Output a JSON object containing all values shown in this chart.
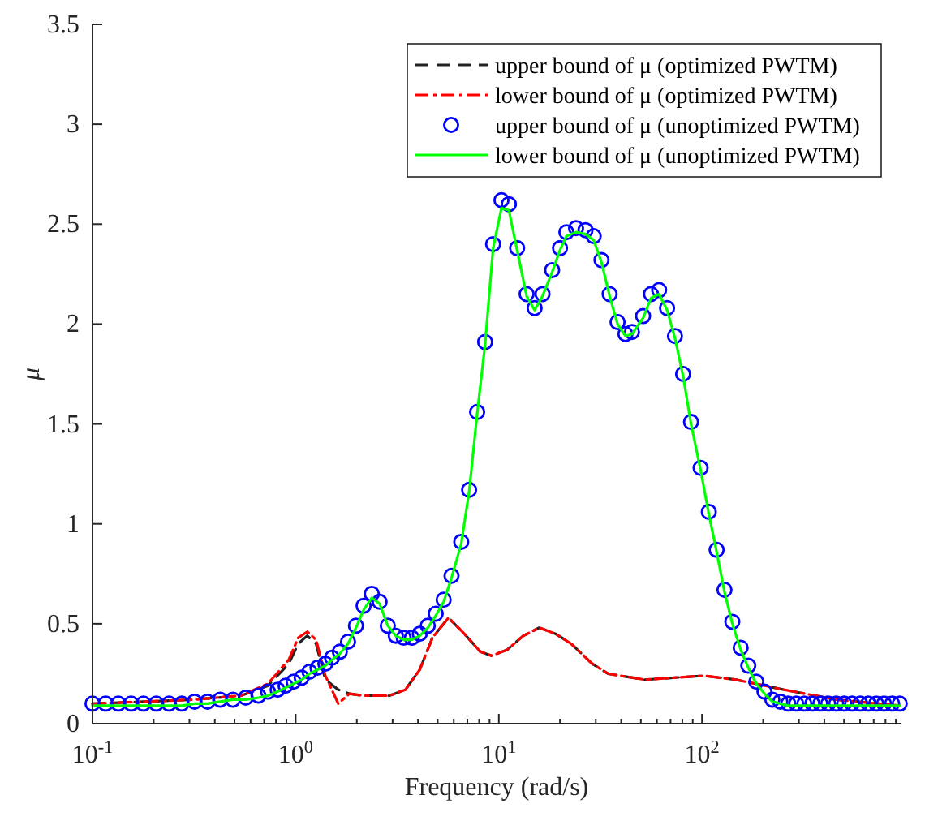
{
  "chart_data": {
    "type": "line",
    "xlabel": "Frequency (rad/s)",
    "ylabel": "μ",
    "log": "x",
    "xlim": [
      0.1,
      950
    ],
    "ylim": [
      0,
      3.5
    ],
    "xticks": [
      {
        "value": 0.1,
        "label": "10$^{-1}$"
      },
      {
        "value": 0.2,
        "label": null
      },
      {
        "value": 0.3,
        "label": null
      },
      {
        "value": 0.4,
        "label": null
      },
      {
        "value": 0.5,
        "label": null
      },
      {
        "value": 0.6,
        "label": null
      },
      {
        "value": 0.7,
        "label": null
      },
      {
        "value": 0.8,
        "label": null
      },
      {
        "value": 0.9,
        "label": null
      },
      {
        "value": 1,
        "label": "10$^{0}$"
      },
      {
        "value": 2,
        "label": null
      },
      {
        "value": 3,
        "label": null
      },
      {
        "value": 4,
        "label": null
      },
      {
        "value": 5,
        "label": null
      },
      {
        "value": 6,
        "label": null
      },
      {
        "value": 7,
        "label": null
      },
      {
        "value": 8,
        "label": null
      },
      {
        "value": 9,
        "label": null
      },
      {
        "value": 10,
        "label": "10$^{1}$"
      },
      {
        "value": 20,
        "label": null
      },
      {
        "value": 30,
        "label": null
      },
      {
        "value": 40,
        "label": null
      },
      {
        "value": 50,
        "label": null
      },
      {
        "value": 60,
        "label": null
      },
      {
        "value": 70,
        "label": null
      },
      {
        "value": 80,
        "label": null
      },
      {
        "value": 90,
        "label": null
      },
      {
        "value": 100,
        "label": "10$^{2}$"
      },
      {
        "value": 200,
        "label": null
      },
      {
        "value": 300,
        "label": null
      },
      {
        "value": 400,
        "label": null
      },
      {
        "value": 500,
        "label": null
      },
      {
        "value": 600,
        "label": null
      },
      {
        "value": 700,
        "label": null
      },
      {
        "value": 800,
        "label": null
      },
      {
        "value": 900,
        "label": null
      }
    ],
    "yticks": [
      0,
      0.5,
      1,
      1.5,
      2,
      2.5,
      3,
      3.5
    ],
    "grid": false,
    "legend": "top right",
    "series": [
      {
        "name": "upper bound of μ (optimized PWTM)",
        "color": "#222222",
        "line_style": "dashed",
        "marker": "none",
        "x": [
          0.1,
          0.313,
          0.538,
          0.731,
          0.925,
          1.03,
          1.14,
          1.26,
          1.4,
          1.62,
          1.84,
          2.16,
          2.89,
          3.47,
          4.08,
          4.71,
          5.65,
          6.76,
          8.11,
          9.21,
          11,
          13.2,
          15.8,
          19,
          22.7,
          28.8,
          34.5,
          52.3,
          102,
          147,
          253,
          458,
          940
        ],
        "values": [
          0.1,
          0.12,
          0.14,
          0.19,
          0.3,
          0.4,
          0.44,
          0.4,
          0.22,
          0.17,
          0.15,
          0.14,
          0.14,
          0.17,
          0.27,
          0.43,
          0.53,
          0.45,
          0.36,
          0.34,
          0.37,
          0.44,
          0.48,
          0.45,
          0.4,
          0.3,
          0.25,
          0.22,
          0.24,
          0.22,
          0.17,
          0.12,
          0.09
        ]
      },
      {
        "name": "lower bound of μ (optimized PWTM)",
        "color": "#ff0000",
        "line_style": "dashdot",
        "marker": "none",
        "x": [
          0.1,
          0.313,
          0.538,
          0.731,
          0.925,
          1.03,
          1.14,
          1.26,
          1.4,
          1.62,
          1.84,
          2.16,
          2.89,
          3.47,
          4.08,
          4.71,
          5.65,
          6.76,
          8.11,
          9.21,
          11,
          13.2,
          15.8,
          19,
          22.7,
          28.8,
          34.5,
          52.3,
          102,
          147,
          253,
          458,
          940
        ],
        "values": [
          0.1,
          0.12,
          0.14,
          0.2,
          0.32,
          0.43,
          0.46,
          0.42,
          0.24,
          0.1,
          0.15,
          0.14,
          0.14,
          0.17,
          0.27,
          0.43,
          0.53,
          0.45,
          0.36,
          0.34,
          0.37,
          0.44,
          0.48,
          0.45,
          0.4,
          0.3,
          0.25,
          0.22,
          0.24,
          0.22,
          0.17,
          0.12,
          0.09
        ]
      },
      {
        "name": "upper bound of μ (unoptimized PWTM)",
        "type": "scatter",
        "color": "#0000ff",
        "marker": "circle",
        "x": [
          0.1,
          0.116,
          0.134,
          0.155,
          0.178,
          0.206,
          0.238,
          0.275,
          0.318,
          0.368,
          0.425,
          0.491,
          0.568,
          0.656,
          0.731,
          0.815,
          0.892,
          0.977,
          1.07,
          1.17,
          1.28,
          1.4,
          1.51,
          1.65,
          1.81,
          1.98,
          2.16,
          2.37,
          2.59,
          2.84,
          3.11,
          3.4,
          3.73,
          4.08,
          4.47,
          4.89,
          5.35,
          5.85,
          6.53,
          7.14,
          7.82,
          8.56,
          9.37,
          10.3,
          11.2,
          12.3,
          13.7,
          15,
          16.4,
          18.3,
          20,
          21.5,
          24,
          26.7,
          29.3,
          32,
          35.1,
          38.4,
          42,
          45.2,
          51.3,
          56.1,
          61.5,
          67.3,
          73.6,
          80.7,
          88.3,
          98.4,
          108,
          118,
          129,
          141,
          155,
          169,
          185,
          203,
          222,
          243,
          266,
          291,
          319,
          349,
          382,
          418,
          458,
          501,
          548,
          601,
          658,
          720,
          787,
          863,
          940
        ],
        "values": [
          0.1,
          0.1,
          0.1,
          0.1,
          0.1,
          0.1,
          0.1,
          0.1,
          0.11,
          0.11,
          0.12,
          0.12,
          0.13,
          0.14,
          0.16,
          0.17,
          0.19,
          0.21,
          0.23,
          0.26,
          0.28,
          0.3,
          0.33,
          0.36,
          0.41,
          0.49,
          0.59,
          0.65,
          0.61,
          0.49,
          0.44,
          0.43,
          0.43,
          0.45,
          0.49,
          0.55,
          0.62,
          0.74,
          0.91,
          1.17,
          1.56,
          1.91,
          2.4,
          2.62,
          2.6,
          2.38,
          2.15,
          2.08,
          2.15,
          2.27,
          2.38,
          2.46,
          2.48,
          2.47,
          2.44,
          2.32,
          2.15,
          2.01,
          1.95,
          1.96,
          2.04,
          2.15,
          2.17,
          2.08,
          1.94,
          1.75,
          1.51,
          1.28,
          1.06,
          0.87,
          0.67,
          0.51,
          0.38,
          0.29,
          0.21,
          0.16,
          0.12,
          0.11,
          0.1,
          0.1,
          0.1,
          0.1,
          0.1,
          0.1,
          0.1,
          0.1,
          0.1,
          0.1,
          0.1,
          0.1,
          0.1,
          0.1,
          0.1
        ]
      },
      {
        "name": "lower bound of μ (unoptimized PWTM)",
        "color": "#00ff00",
        "line_style": "solid",
        "marker": "none",
        "x": [
          0.1,
          0.116,
          0.134,
          0.155,
          0.178,
          0.206,
          0.238,
          0.275,
          0.318,
          0.368,
          0.425,
          0.491,
          0.568,
          0.656,
          0.731,
          0.815,
          0.892,
          0.977,
          1.07,
          1.17,
          1.28,
          1.4,
          1.51,
          1.65,
          1.81,
          1.98,
          2.16,
          2.37,
          2.59,
          2.84,
          3.11,
          3.4,
          3.73,
          4.08,
          4.47,
          4.89,
          5.35,
          5.85,
          6.53,
          7.14,
          7.82,
          8.56,
          9.37,
          10.3,
          11.2,
          12.3,
          13.7,
          15,
          16.4,
          18.3,
          20,
          21.5,
          24,
          26.7,
          29.3,
          32,
          35.1,
          38.4,
          42,
          45.2,
          51.3,
          56.1,
          61.5,
          67.3,
          73.6,
          80.7,
          88.3,
          98.4,
          108,
          118,
          129,
          141,
          155,
          169,
          185,
          203,
          222,
          243,
          266,
          291,
          319,
          349,
          382,
          418,
          458,
          501,
          548,
          601,
          658,
          720,
          787,
          863,
          940
        ],
        "values": [
          0.09,
          0.09,
          0.09,
          0.09,
          0.09,
          0.09,
          0.09,
          0.09,
          0.1,
          0.1,
          0.11,
          0.12,
          0.12,
          0.13,
          0.14,
          0.16,
          0.18,
          0.2,
          0.22,
          0.25,
          0.27,
          0.29,
          0.32,
          0.35,
          0.4,
          0.48,
          0.57,
          0.63,
          0.6,
          0.49,
          0.44,
          0.42,
          0.42,
          0.44,
          0.48,
          0.54,
          0.61,
          0.73,
          0.9,
          1.16,
          1.55,
          1.9,
          2.38,
          2.58,
          2.57,
          2.37,
          2.14,
          2.07,
          2.14,
          2.26,
          2.37,
          2.44,
          2.46,
          2.45,
          2.42,
          2.31,
          2.14,
          2,
          1.94,
          1.95,
          2.03,
          2.13,
          2.15,
          2.07,
          1.93,
          1.74,
          1.5,
          1.27,
          1.05,
          0.86,
          0.66,
          0.5,
          0.37,
          0.28,
          0.2,
          0.15,
          0.11,
          0.1,
          0.09,
          0.09,
          0.09,
          0.09,
          0.09,
          0.09,
          0.09,
          0.09,
          0.09,
          0.09,
          0.09,
          0.09,
          0.09,
          0.09,
          0.09
        ]
      }
    ]
  }
}
